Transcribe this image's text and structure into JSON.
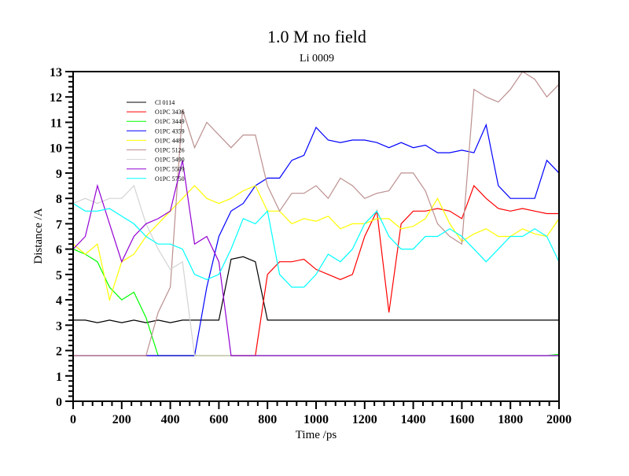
{
  "chart_data": {
    "type": "line",
    "title": "1.0 M no field",
    "subtitle": "Li 0009",
    "xlabel": "Time /ps",
    "ylabel": "Distance /A",
    "xlim": [
      0,
      2000
    ],
    "ylim": [
      0,
      13
    ],
    "xticks": [
      0,
      200,
      400,
      600,
      800,
      1000,
      1200,
      1400,
      1600,
      1800,
      2000
    ],
    "yticks": [
      0,
      1,
      2,
      3,
      4,
      5,
      6,
      7,
      8,
      9,
      10,
      11,
      12,
      13
    ],
    "grid": false,
    "legend_position": "top-left",
    "x": [
      0,
      50,
      100,
      150,
      200,
      250,
      300,
      350,
      400,
      450,
      500,
      550,
      600,
      650,
      700,
      750,
      800,
      850,
      900,
      950,
      1000,
      1050,
      1100,
      1150,
      1200,
      1250,
      1300,
      1350,
      1400,
      1450,
      1500,
      1550,
      1600,
      1650,
      1700,
      1750,
      1800,
      1850,
      1900,
      1950,
      2000
    ],
    "series": [
      {
        "name": "Cl 0114",
        "color": "#000000",
        "values": [
          3.2,
          3.2,
          3.1,
          3.2,
          3.1,
          3.2,
          3.1,
          3.2,
          3.1,
          3.2,
          3.2,
          3.2,
          3.2,
          5.6,
          5.7,
          5.5,
          3.2,
          3.2,
          3.2,
          3.2,
          3.2,
          3.2,
          3.2,
          3.2,
          3.2,
          3.2,
          3.2,
          3.2,
          3.2,
          3.2,
          3.2,
          3.2,
          3.2,
          3.2,
          3.2,
          3.2,
          3.2,
          3.2,
          3.2,
          3.2,
          3.2
        ]
      },
      {
        "name": "O1PC 3436",
        "color": "#ff0000",
        "values": [
          1.8,
          1.8,
          1.8,
          1.8,
          1.8,
          1.8,
          1.8,
          1.8,
          1.8,
          1.8,
          1.8,
          1.8,
          1.8,
          1.8,
          1.8,
          1.8,
          5.0,
          5.5,
          5.5,
          5.6,
          5.2,
          5.0,
          4.8,
          5.0,
          6.5,
          7.5,
          3.5,
          7.0,
          7.5,
          7.5,
          7.6,
          7.5,
          7.2,
          8.5,
          8.0,
          7.6,
          7.5,
          7.6,
          7.5,
          7.4,
          7.4
        ]
      },
      {
        "name": "O1PC 3449",
        "color": "#00ff00",
        "values": [
          6.0,
          5.8,
          5.5,
          4.5,
          4.0,
          4.3,
          3.3,
          1.8,
          1.8,
          1.8,
          1.8,
          1.8,
          1.8,
          1.8,
          1.8,
          1.8,
          1.8,
          1.8,
          1.8,
          1.8,
          1.8,
          1.8,
          1.8,
          1.8,
          1.8,
          1.8,
          1.8,
          1.8,
          1.8,
          1.8,
          1.8,
          1.8,
          1.8,
          1.8,
          1.8,
          1.8,
          1.8,
          1.8,
          1.8,
          1.8,
          1.85
        ]
      },
      {
        "name": "O1PC 4359",
        "color": "#0000ff",
        "values": [
          1.8,
          1.8,
          1.8,
          1.8,
          1.8,
          1.8,
          1.8,
          1.8,
          1.8,
          1.8,
          1.8,
          4.5,
          6.5,
          7.5,
          7.8,
          8.5,
          8.8,
          8.8,
          9.5,
          9.7,
          10.8,
          10.3,
          10.2,
          10.3,
          10.3,
          10.2,
          10.0,
          10.2,
          10.0,
          10.1,
          9.8,
          9.8,
          9.9,
          9.8,
          10.9,
          8.5,
          8.0,
          8.0,
          8.0,
          9.5,
          9.0
        ]
      },
      {
        "name": "O1PC 4489",
        "color": "#ffff00",
        "values": [
          6.2,
          5.8,
          6.2,
          4.0,
          5.5,
          5.8,
          6.5,
          7.0,
          7.5,
          8.0,
          8.5,
          8.0,
          7.8,
          8.0,
          8.3,
          8.5,
          7.5,
          7.5,
          7.0,
          7.2,
          7.1,
          7.3,
          6.8,
          7.0,
          7.0,
          7.2,
          7.2,
          6.8,
          6.9,
          7.2,
          8.0,
          7.0,
          6.3,
          6.6,
          6.8,
          6.5,
          6.5,
          6.8,
          6.6,
          6.5,
          7.2
        ]
      },
      {
        "name": "O1PC 5126",
        "color": "#bc8f8f",
        "values": [
          1.8,
          1.8,
          1.8,
          1.8,
          1.8,
          1.8,
          1.8,
          3.5,
          4.5,
          11.5,
          10.0,
          11.0,
          10.5,
          10.0,
          10.5,
          10.5,
          8.5,
          7.5,
          8.2,
          8.2,
          8.5,
          8.0,
          8.8,
          8.5,
          8.0,
          8.2,
          8.3,
          9.0,
          9.0,
          8.3,
          7.0,
          6.5,
          6.2,
          12.3,
          12.0,
          11.8,
          12.3,
          13.0,
          12.7,
          12.0,
          12.5
        ]
      },
      {
        "name": "O1PC 5490",
        "color": "#d3d3d3",
        "values": [
          7.8,
          8.0,
          7.8,
          8.0,
          8.0,
          8.5,
          7.0,
          6.0,
          5.2,
          5.5,
          1.8,
          1.8,
          1.8,
          1.8,
          1.8,
          1.8,
          1.8,
          1.8,
          1.8,
          1.8,
          1.8,
          1.8,
          1.8,
          1.8,
          1.8,
          1.8,
          1.8,
          1.8,
          1.8,
          1.8,
          1.8,
          1.8,
          1.8,
          1.8,
          1.8,
          1.8,
          1.8,
          1.8,
          1.8,
          1.8,
          1.8
        ]
      },
      {
        "name": "O1PC 5509",
        "color": "#9400d3",
        "values": [
          6.0,
          6.5,
          8.5,
          7.0,
          5.5,
          6.5,
          7.0,
          7.2,
          7.5,
          9.5,
          6.2,
          6.5,
          5.5,
          1.8,
          1.8,
          1.8,
          1.8,
          1.8,
          1.8,
          1.8,
          1.8,
          1.8,
          1.8,
          1.8,
          1.8,
          1.8,
          1.8,
          1.8,
          1.8,
          1.8,
          1.8,
          1.8,
          1.8,
          1.8,
          1.8,
          1.8,
          1.8,
          1.8,
          1.8,
          1.8,
          1.8
        ]
      },
      {
        "name": "O1PC 5750",
        "color": "#00ffff",
        "values": [
          7.8,
          7.5,
          7.5,
          7.6,
          7.3,
          7.0,
          6.5,
          6.2,
          6.2,
          6.0,
          5.0,
          4.8,
          5.0,
          6.0,
          7.2,
          7.0,
          7.5,
          5.0,
          4.5,
          4.5,
          5.0,
          5.8,
          5.5,
          6.0,
          7.0,
          7.5,
          6.5,
          6.0,
          6.0,
          6.5,
          6.5,
          6.8,
          6.5,
          6.0,
          5.5,
          6.0,
          6.5,
          6.5,
          6.8,
          6.5,
          5.5
        ]
      }
    ]
  }
}
